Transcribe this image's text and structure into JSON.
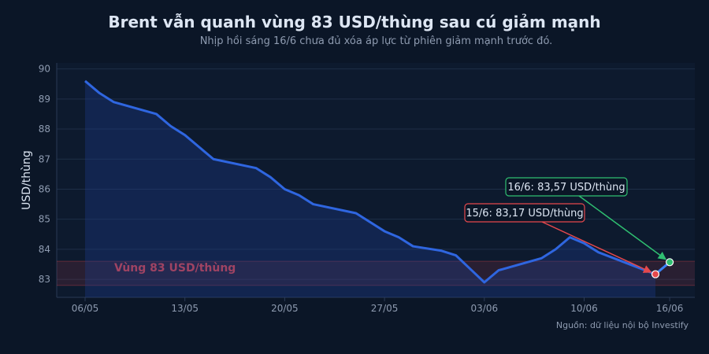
{
  "title": "Brent vẫn quanh vùng 83 USD/thùng sau cú giảm mạnh",
  "subtitle": "Nhịp hồi sáng 16/6 chưa đủ xóa áp lực từ phiên giảm mạnh trước đó.",
  "source": "Nguồn: dữ liệu nội bộ Investify",
  "chart_data": {
    "type": "line",
    "ylabel": "USD/thùng",
    "xlabel": "",
    "ylim": [
      82.4,
      90.2
    ],
    "y_ticks": [
      "83",
      "84",
      "85",
      "86",
      "87",
      "88",
      "89",
      "90"
    ],
    "x_ticks": [
      "06/05",
      "13/05",
      "20/05",
      "27/05",
      "03/06",
      "10/06",
      "16/06"
    ],
    "grid": true,
    "zone": {
      "label": "Vùng 83 USD/thùng",
      "range": [
        82.8,
        83.6
      ],
      "color": "#e5484d"
    },
    "series": [
      {
        "color": "#2f66e0",
        "points": [
          [
            "2024-05-06",
            89.6
          ],
          [
            "2024-05-07",
            89.2
          ],
          [
            "2024-05-08",
            88.9
          ],
          [
            "2024-05-11",
            88.5
          ],
          [
            "2024-05-12",
            88.1
          ],
          [
            "2024-05-13",
            87.8
          ],
          [
            "2024-05-15",
            87.0
          ],
          [
            "2024-05-18",
            86.7
          ],
          [
            "2024-05-19",
            86.4
          ],
          [
            "2024-05-20",
            86.0
          ],
          [
            "2024-05-21",
            85.8
          ],
          [
            "2024-05-22",
            85.5
          ],
          [
            "2024-05-25",
            85.2
          ],
          [
            "2024-05-27",
            84.6
          ],
          [
            "2024-05-28",
            84.4
          ],
          [
            "2024-05-29",
            84.1
          ],
          [
            "2024-05-31",
            83.95
          ],
          [
            "2024-06-01",
            83.8
          ],
          [
            "2024-06-02",
            83.35
          ],
          [
            "2024-06-03",
            82.9
          ],
          [
            "2024-06-04",
            83.3
          ],
          [
            "2024-06-07",
            83.7
          ],
          [
            "2024-06-08",
            84.0
          ],
          [
            "2024-06-09",
            84.4
          ],
          [
            "2024-06-10",
            84.2
          ],
          [
            "2024-06-11",
            83.9
          ],
          [
            "2024-06-15",
            83.17
          ]
        ]
      },
      {
        "color": "#3b82f6",
        "points": [
          [
            "2024-06-15",
            83.17
          ],
          [
            "2024-06-16",
            83.57
          ]
        ]
      }
    ],
    "annotations": [
      {
        "text": "15/6: 83,17 USD/thùng",
        "date": "2024-06-15",
        "value": 83.17,
        "color": "#e5484d"
      },
      {
        "text": "16/6: 83,57 USD/thùng",
        "date": "2024-06-16",
        "value": 83.57,
        "color": "#2fbf71"
      }
    ]
  }
}
